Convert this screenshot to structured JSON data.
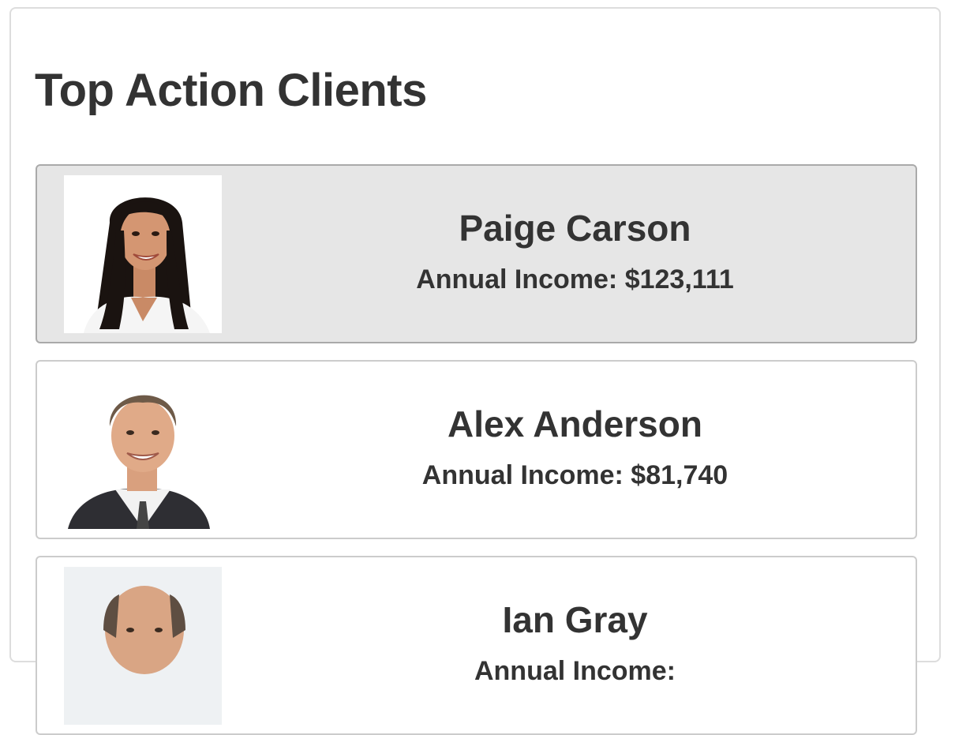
{
  "panel": {
    "title": "Top Action Clients"
  },
  "clients": [
    {
      "name": "Paige Carson",
      "income_label": "Annual Income:",
      "income": "$123,111",
      "selected": true
    },
    {
      "name": "Alex Anderson",
      "income_label": "Annual Income:",
      "income": "$81,740",
      "selected": false
    },
    {
      "name": "Ian Gray",
      "income_label": "Annual Income:",
      "income": "",
      "selected": false
    }
  ],
  "colors": {
    "selected_bg": "#e6e6e6",
    "text": "#333333",
    "border": "#cccccc"
  }
}
